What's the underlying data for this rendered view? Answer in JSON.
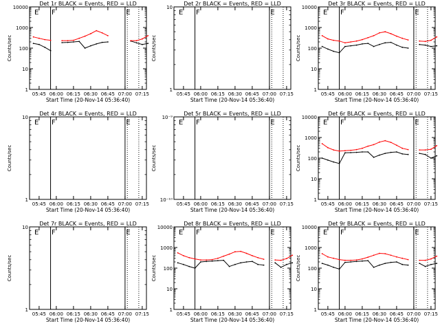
{
  "figure": {
    "xlabel": "Start Time (20-Nov-14 05:36:40)",
    "ylabel": "Counts/sec",
    "x_ticks": [
      "05:45",
      "06:00",
      "06:15",
      "06:30",
      "06:45",
      "07:00",
      "07:15"
    ],
    "flag_labels": [
      "E",
      "F",
      "E"
    ],
    "colors": {
      "events": "#000000",
      "lld": "#ff0000",
      "axes": "#000000",
      "background": "#ffffff"
    }
  },
  "chart_data": [
    {
      "type": "line",
      "title": "Det 1r BLACK = Events, RED = LLD",
      "xlabel": "Start Time (20-Nov-14 05:36:40)",
      "ylabel": "Counts/sec",
      "yscale": "log",
      "ylim": [
        1,
        10000
      ],
      "y_ticks": [
        "1",
        "10",
        "100",
        "1000",
        "10000"
      ],
      "x": [
        "05:40",
        "05:45",
        "05:50",
        "05:55",
        "06:00",
        "06:05",
        "06:10",
        "06:15",
        "06:20",
        "06:25",
        "06:30",
        "06:35",
        "06:40",
        "06:45",
        "06:50",
        "06:55",
        "07:00",
        "07:05",
        "07:10",
        "07:15",
        "07:20"
      ],
      "series": [
        {
          "name": "BLACK = Events",
          "values": [
            170,
            150,
            110,
            75,
            null,
            185,
            190,
            200,
            210,
            100,
            130,
            160,
            190,
            200,
            null,
            null,
            null,
            220,
            180,
            150,
            170
          ]
        },
        {
          "name": "RED = LLD",
          "values": [
            350,
            300,
            260,
            240,
            null,
            230,
            230,
            240,
            300,
            380,
            500,
            700,
            550,
            400,
            null,
            null,
            null,
            230,
            230,
            280,
            400
          ]
        }
      ],
      "flags": [
        {
          "label": "E",
          "x": "05:40"
        },
        {
          "label": "F",
          "x": "05:55"
        },
        {
          "label": "E",
          "x": "07:00"
        }
      ]
    },
    {
      "type": "line",
      "title": "Det 2r BLACK = Events, RED = LLD",
      "xlabel": "Start Time (20-Nov-14 05:36:40)",
      "ylabel": "Counts/sec",
      "yscale": "log",
      "ylim": [
        1,
        10
      ],
      "y_ticks": [
        "1",
        "10"
      ],
      "x": [],
      "series": [],
      "flags": [
        {
          "label": "E",
          "x": "05:40"
        },
        {
          "label": "F",
          "x": "05:55"
        },
        {
          "label": "E",
          "x": "07:00"
        }
      ]
    },
    {
      "type": "line",
      "title": "Det 3r BLACK = Events, RED = LLD",
      "xlabel": "Start Time (20-Nov-14 05:36:40)",
      "ylabel": "Counts/sec",
      "yscale": "log",
      "ylim": [
        1,
        10000
      ],
      "y_ticks": [
        "1",
        "10",
        "100",
        "1000",
        "10000"
      ],
      "x": [
        "05:40",
        "05:45",
        "05:50",
        "05:55",
        "06:00",
        "06:05",
        "06:10",
        "06:15",
        "06:20",
        "06:25",
        "06:30",
        "06:35",
        "06:40",
        "06:45",
        "06:50",
        "06:55",
        "07:00",
        "07:05",
        "07:10",
        "07:15",
        "07:20"
      ],
      "series": [
        {
          "name": "BLACK = Events",
          "values": [
            120,
            90,
            70,
            60,
            120,
            130,
            140,
            160,
            170,
            120,
            150,
            180,
            190,
            140,
            110,
            100,
            null,
            150,
            140,
            120,
            130
          ]
        },
        {
          "name": "RED = LLD",
          "values": [
            400,
            280,
            240,
            220,
            180,
            200,
            220,
            260,
            320,
            400,
            550,
            620,
            500,
            380,
            300,
            250,
            null,
            220,
            210,
            240,
            350
          ]
        }
      ],
      "flags": [
        {
          "label": "E",
          "x": "05:40"
        },
        {
          "label": "F",
          "x": "05:55"
        },
        {
          "label": "E",
          "x": "07:00"
        }
      ]
    },
    {
      "type": "line",
      "title": "Det 4r BLACK = Events, RED = LLD",
      "xlabel": "Start Time (20-Nov-14 05:36:40)",
      "ylabel": "Counts/sec",
      "yscale": "log",
      "ylim": [
        1,
        10
      ],
      "y_ticks": [
        "1",
        "10"
      ],
      "x": [],
      "series": [],
      "flags": [
        {
          "label": "E",
          "x": "05:40"
        },
        {
          "label": "F",
          "x": "05:55"
        },
        {
          "label": "E",
          "x": "07:00"
        }
      ]
    },
    {
      "type": "line",
      "title": "Det 5r BLACK = Events, RED = LLD",
      "xlabel": "Start Time (20-Nov-14 05:36:40)",
      "ylabel": "Counts/sec",
      "yscale": "log",
      "ylim": [
        1e-10,
        1e-09
      ],
      "y_ticks": [
        "10⁻¹⁰",
        "10⁻⁹"
      ],
      "x": [],
      "series": [],
      "flags": [
        {
          "label": "E",
          "x": "05:40"
        },
        {
          "label": "F",
          "x": "05:55"
        },
        {
          "label": "E",
          "x": "07:00"
        }
      ]
    },
    {
      "type": "line",
      "title": "Det 6r BLACK = Events, RED = LLD",
      "xlabel": "Start Time (20-Nov-14 05:36:40)",
      "ylabel": "Counts/sec",
      "yscale": "log",
      "ylim": [
        1,
        10000
      ],
      "y_ticks": [
        "1",
        "10",
        "100",
        "1000",
        "10000"
      ],
      "x": [
        "05:40",
        "05:45",
        "05:50",
        "05:55",
        "06:00",
        "06:05",
        "06:10",
        "06:15",
        "06:20",
        "06:25",
        "06:30",
        "06:35",
        "06:40",
        "06:45",
        "06:50",
        "06:55",
        "07:00",
        "07:05",
        "07:10",
        "07:15",
        "07:20"
      ],
      "series": [
        {
          "name": "BLACK = Events",
          "values": [
            100,
            80,
            65,
            55,
            180,
            185,
            190,
            200,
            200,
            110,
            140,
            170,
            190,
            200,
            160,
            150,
            null,
            170,
            150,
            100,
            130
          ]
        },
        {
          "name": "RED = LLD",
          "values": [
            500,
            320,
            250,
            220,
            230,
            240,
            260,
            300,
            380,
            450,
            600,
            700,
            580,
            420,
            300,
            260,
            null,
            250,
            250,
            270,
            400
          ]
        }
      ],
      "flags": [
        {
          "label": "E",
          "x": "05:40"
        },
        {
          "label": "F",
          "x": "05:55"
        },
        {
          "label": "E",
          "x": "07:00"
        }
      ]
    },
    {
      "type": "line",
      "title": "Det 7r BLACK = Events, RED = LLD",
      "xlabel": "Start Time (20-Nov-14 05:36:40)",
      "ylabel": "Counts/sec",
      "yscale": "log",
      "ylim": [
        1,
        10
      ],
      "y_ticks": [
        "1",
        "10"
      ],
      "x": [],
      "series": [],
      "flags": [
        {
          "label": "E",
          "x": "05:40"
        },
        {
          "label": "F",
          "x": "05:55"
        },
        {
          "label": "E",
          "x": "07:00"
        }
      ]
    },
    {
      "type": "line",
      "title": "Det 8r BLACK = Events, RED = LLD",
      "xlabel": "Start Time (20-Nov-14 05:36:40)",
      "ylabel": "Counts/sec",
      "yscale": "log",
      "ylim": [
        1,
        10000
      ],
      "y_ticks": [
        "1",
        "10",
        "100",
        "1000",
        "10000"
      ],
      "x": [
        "05:40",
        "05:45",
        "05:50",
        "05:55",
        "06:00",
        "06:05",
        "06:10",
        "06:15",
        "06:20",
        "06:25",
        "06:30",
        "06:35",
        "06:40",
        "06:45",
        "06:50",
        "06:55",
        "07:00",
        "07:05",
        "07:10",
        "07:15",
        "07:20"
      ],
      "series": [
        {
          "name": "BLACK = Events",
          "values": [
            180,
            150,
            120,
            100,
            200,
            210,
            220,
            230,
            240,
            120,
            150,
            180,
            200,
            210,
            150,
            140,
            null,
            180,
            110,
            150,
            180
          ]
        },
        {
          "name": "RED = LLD",
          "values": [
            550,
            400,
            320,
            280,
            250,
            250,
            260,
            300,
            380,
            480,
            620,
            650,
            520,
            400,
            320,
            270,
            null,
            250,
            240,
            290,
            420
          ]
        }
      ],
      "flags": [
        {
          "label": "E",
          "x": "05:40"
        },
        {
          "label": "F",
          "x": "05:55"
        },
        {
          "label": "E",
          "x": "07:00"
        }
      ]
    },
    {
      "type": "line",
      "title": "Det 9r BLACK = Events, RED = LLD",
      "xlabel": "Start Time (20-Nov-14 05:36:40)",
      "ylabel": "Counts/sec",
      "yscale": "log",
      "ylim": [
        1,
        10000
      ],
      "y_ticks": [
        "1",
        "10",
        "100",
        "1000",
        "10000"
      ],
      "x": [
        "05:40",
        "05:45",
        "05:50",
        "05:55",
        "06:00",
        "06:05",
        "06:10",
        "06:15",
        "06:20",
        "06:25",
        "06:30",
        "06:35",
        "06:40",
        "06:45",
        "06:50",
        "06:55",
        "07:00",
        "07:05",
        "07:10",
        "07:15",
        "07:20"
      ],
      "series": [
        {
          "name": "BLACK = Events",
          "values": [
            170,
            140,
            110,
            90,
            190,
            200,
            210,
            220,
            230,
            110,
            140,
            170,
            190,
            200,
            150,
            140,
            null,
            170,
            120,
            150,
            170
          ]
        },
        {
          "name": "RED = LLD",
          "values": [
            500,
            350,
            300,
            260,
            240,
            240,
            250,
            280,
            340,
            420,
            520,
            500,
            420,
            350,
            300,
            260,
            null,
            240,
            240,
            280,
            380
          ]
        }
      ],
      "flags": [
        {
          "label": "E",
          "x": "05:40"
        },
        {
          "label": "F",
          "x": "05:55"
        },
        {
          "label": "E",
          "x": "07:00"
        }
      ]
    }
  ]
}
